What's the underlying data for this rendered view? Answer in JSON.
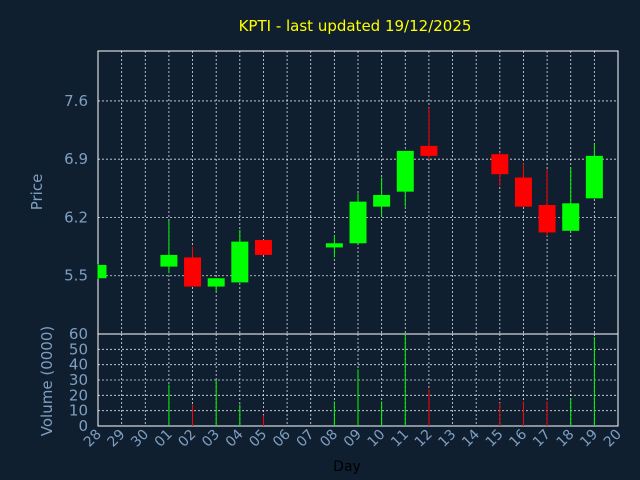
{
  "chart_data": {
    "type": "candlestick",
    "title": "KPTI - last updated 19/12/2025",
    "xlabel": "Day",
    "price_panel": {
      "ylabel": "Price",
      "yticks": [
        5.5,
        6.2,
        6.9,
        7.6
      ],
      "ylim": [
        4.8,
        8.2
      ]
    },
    "volume_panel": {
      "ylabel": "Volume (0000)",
      "yticks": [
        0,
        10,
        20,
        30,
        40,
        50,
        60
      ],
      "ylim": [
        0,
        60
      ]
    },
    "x_labels": [
      "28",
      "29",
      "30",
      "01",
      "02",
      "03",
      "04",
      "05",
      "06",
      "07",
      "08",
      "09",
      "10",
      "11",
      "12",
      "13",
      "14",
      "15",
      "16",
      "17",
      "18",
      "19",
      "20"
    ],
    "grid": true,
    "colors": {
      "up": "#00ff00",
      "down": "#ff0000",
      "title": "#ffff00",
      "axis": "#7f9fc0",
      "background": "#0f1f30"
    },
    "candles": [
      {
        "day": "28",
        "open": 5.47,
        "close": 5.63,
        "high": 5.64,
        "low": 5.46,
        "volume": 0
      },
      {
        "day": "01",
        "open": 5.61,
        "close": 5.75,
        "high": 6.16,
        "low": 5.53,
        "volume": 27
      },
      {
        "day": "02",
        "open": 5.72,
        "close": 5.37,
        "high": 5.85,
        "low": 5.37,
        "volume": 14
      },
      {
        "day": "03",
        "open": 5.37,
        "close": 5.47,
        "high": 5.47,
        "low": 5.31,
        "volume": 30
      },
      {
        "day": "04",
        "open": 5.42,
        "close": 5.91,
        "high": 6.05,
        "low": 5.42,
        "volume": 14
      },
      {
        "day": "05",
        "open": 5.93,
        "close": 5.75,
        "high": 5.93,
        "low": 5.75,
        "volume": 7
      },
      {
        "day": "08",
        "open": 5.84,
        "close": 5.89,
        "high": 5.98,
        "low": 5.72,
        "volume": 16
      },
      {
        "day": "09",
        "open": 5.89,
        "close": 6.39,
        "high": 6.49,
        "low": 5.89,
        "volume": 37
      },
      {
        "day": "10",
        "open": 6.33,
        "close": 6.47,
        "high": 6.68,
        "low": 6.21,
        "volume": 16
      },
      {
        "day": "11",
        "open": 6.51,
        "close": 7.0,
        "high": 7.0,
        "low": 6.33,
        "volume": 60
      },
      {
        "day": "12",
        "open": 7.06,
        "close": 6.94,
        "high": 7.52,
        "low": 6.9,
        "volume": 24
      },
      {
        "day": "15",
        "open": 6.96,
        "close": 6.72,
        "high": 6.98,
        "low": 6.58,
        "volume": 15
      },
      {
        "day": "16",
        "open": 6.68,
        "close": 6.33,
        "high": 6.85,
        "low": 6.33,
        "volume": 16
      },
      {
        "day": "17",
        "open": 6.35,
        "close": 6.02,
        "high": 6.78,
        "low": 5.98,
        "volume": 16
      },
      {
        "day": "18",
        "open": 6.04,
        "close": 6.37,
        "high": 6.8,
        "low": 6.04,
        "volume": 18
      },
      {
        "day": "19",
        "open": 6.43,
        "close": 6.94,
        "high": 7.09,
        "low": 6.43,
        "volume": 58
      }
    ]
  }
}
